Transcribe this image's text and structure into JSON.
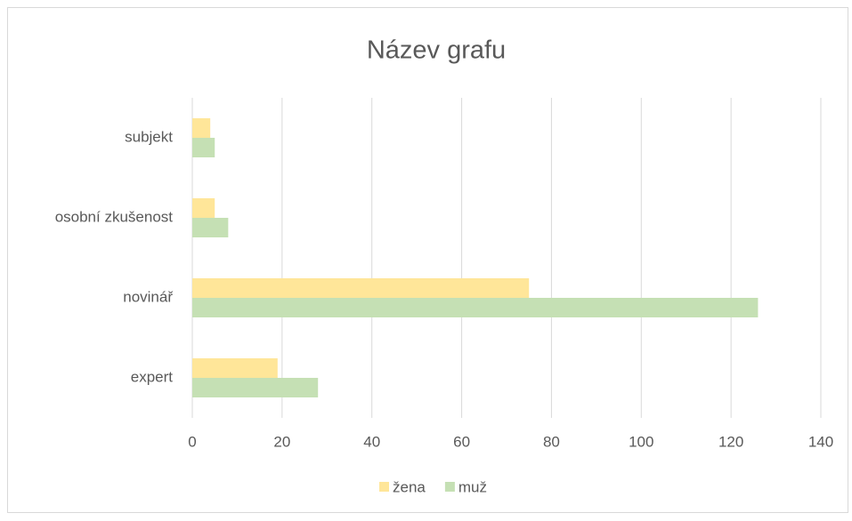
{
  "chart_data": {
    "type": "barh",
    "title": "Název grafu",
    "categories": [
      "subjekt",
      "osobní zkušenost",
      "novinář",
      "expert"
    ],
    "series": [
      {
        "name": "žena",
        "color": "#ffe699",
        "values": [
          4,
          5,
          75,
          19
        ]
      },
      {
        "name": "muž",
        "color": "#c5e0b4",
        "values": [
          5,
          8,
          126,
          28
        ]
      }
    ],
    "xlim": [
      0,
      140
    ],
    "xticks": [
      0,
      20,
      40,
      60,
      80,
      100,
      120,
      140
    ],
    "grid": true,
    "legend": "bottom"
  }
}
